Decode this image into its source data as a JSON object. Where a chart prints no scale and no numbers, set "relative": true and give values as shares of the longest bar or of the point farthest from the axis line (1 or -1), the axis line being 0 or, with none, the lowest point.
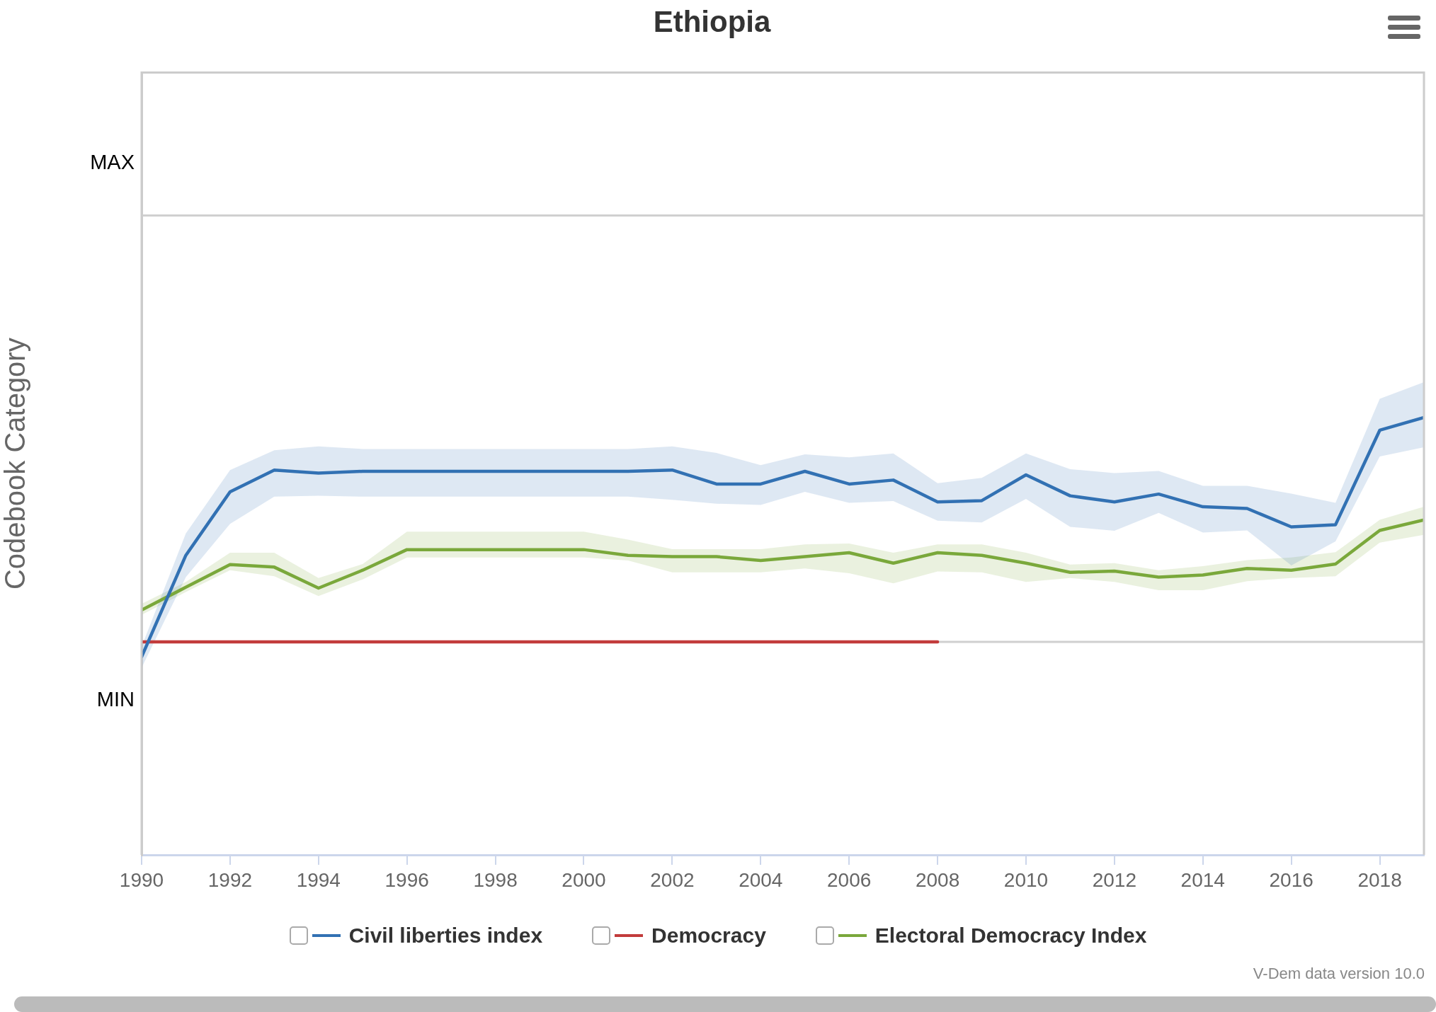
{
  "chart_data": {
    "type": "line",
    "title": "Ethiopia",
    "ylabel": "Codebook Category",
    "relative": true,
    "x": [
      1990,
      1991,
      1992,
      1993,
      1994,
      1995,
      1996,
      1997,
      1998,
      1999,
      2000,
      2001,
      2002,
      2003,
      2004,
      2005,
      2006,
      2007,
      2008,
      2009,
      2010,
      2011,
      2012,
      2013,
      2014,
      2015,
      2016,
      2017,
      2018,
      2019
    ],
    "xlim": [
      1990,
      2019
    ],
    "xticks": [
      1990,
      1992,
      1994,
      1996,
      1998,
      2000,
      2002,
      2004,
      2006,
      2008,
      2010,
      2012,
      2014,
      2016,
      2018
    ],
    "legend": "bottom",
    "series": [
      {
        "name": "Civil liberties index",
        "color": "#3271b3",
        "values": [
          0.453,
          0.685,
          0.83,
          0.88,
          0.873,
          0.877,
          0.877,
          0.877,
          0.877,
          0.877,
          0.877,
          0.877,
          0.88,
          0.848,
          0.848,
          0.877,
          0.848,
          0.857,
          0.807,
          0.81,
          0.869,
          0.821,
          0.807,
          0.825,
          0.796,
          0.792,
          0.75,
          0.755,
          0.971,
          1
        ],
        "lower": [
          0.428,
          0.635,
          0.757,
          0.819,
          0.821,
          0.819,
          0.819,
          0.819,
          0.819,
          0.819,
          0.819,
          0.819,
          0.812,
          0.803,
          0.8,
          0.83,
          0.805,
          0.809,
          0.764,
          0.76,
          0.814,
          0.75,
          0.741,
          0.782,
          0.737,
          0.742,
          0.662,
          0.717,
          0.911,
          0.932
        ],
        "upper": [
          0.476,
          0.735,
          0.88,
          0.925,
          0.934,
          0.928,
          0.928,
          0.928,
          0.928,
          0.928,
          0.928,
          0.928,
          0.934,
          0.919,
          0.891,
          0.916,
          0.909,
          0.918,
          0.85,
          0.862,
          0.918,
          0.882,
          0.873,
          0.878,
          0.844,
          0.844,
          0.826,
          0.805,
          1.043,
          1.081
        ]
      },
      {
        "name": "Democracy",
        "color": "#c23b3b",
        "values": [
          0.487,
          0.487,
          0.487,
          0.487,
          0.487,
          0.487,
          0.487,
          0.487,
          0.487,
          0.487,
          0.487,
          0.487,
          0.487,
          0.487,
          0.487,
          0.487,
          0.487,
          0.487,
          0.487,
          null,
          null,
          null,
          null,
          null,
          null,
          null,
          null,
          null,
          null,
          null
        ]
      },
      {
        "name": "Electoral Democracy Index",
        "color": "#7aa83b",
        "values": [
          0.56,
          0.612,
          0.664,
          0.658,
          0.61,
          0.651,
          0.698,
          0.698,
          0.698,
          0.698,
          0.698,
          0.685,
          0.682,
          0.682,
          0.673,
          0.682,
          0.691,
          0.667,
          0.691,
          0.685,
          0.667,
          0.646,
          0.649,
          0.635,
          0.64,
          0.655,
          0.651,
          0.665,
          0.742,
          0.766
        ],
        "lower": [
          0.549,
          0.601,
          0.651,
          0.637,
          0.592,
          0.63,
          0.68,
          0.68,
          0.68,
          0.68,
          0.68,
          0.673,
          0.646,
          0.646,
          0.646,
          0.655,
          0.644,
          0.621,
          0.648,
          0.646,
          0.624,
          0.633,
          0.624,
          0.605,
          0.605,
          0.626,
          0.633,
          0.637,
          0.714,
          0.732
        ],
        "upper": [
          0.574,
          0.624,
          0.691,
          0.691,
          0.633,
          0.665,
          0.739,
          0.739,
          0.739,
          0.739,
          0.739,
          0.721,
          0.699,
          0.699,
          0.699,
          0.71,
          0.712,
          0.691,
          0.71,
          0.71,
          0.691,
          0.664,
          0.667,
          0.651,
          0.66,
          0.674,
          0.68,
          0.692,
          0.766,
          0.796
        ]
      }
    ],
    "ref_lines": [
      {
        "axis": "y",
        "value": 0.487,
        "color": "#d0d0d0"
      },
      {
        "axis": "y",
        "value": 1.462,
        "color": "#d0d0d0"
      }
    ],
    "annotations": [
      "MAX",
      "MIN",
      "V-Dem data version 10.0"
    ]
  }
}
